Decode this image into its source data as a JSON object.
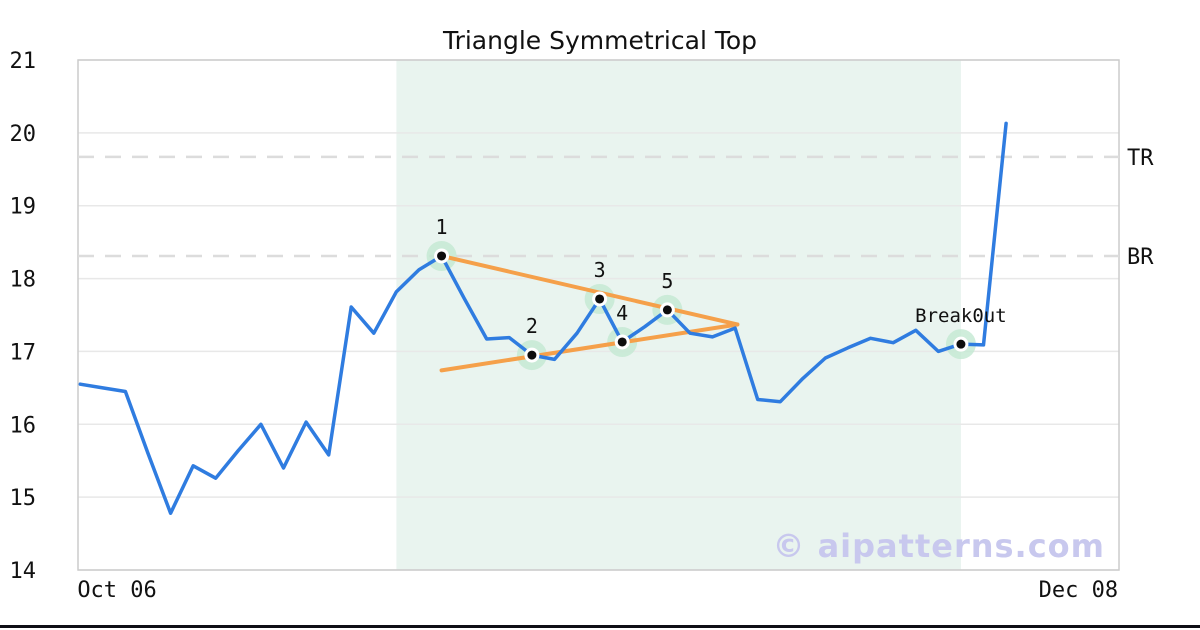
{
  "title": "Triangle Symmetrical Top",
  "watermark": "© aipatterns.com",
  "colors": {
    "price_line": "#2f7ce0",
    "trendline": "#f5a04a",
    "pattern_zone_fill": "#e9f4ef",
    "marker_halo": "#c3e8d2",
    "marker_dot": "#0d0d0d",
    "level_dash": "#dcdcdc",
    "gridline": "#e8e8e8",
    "plot_border": "#cccccc",
    "text": "#111111",
    "watermark_color": "#c8c8ee",
    "bottom_bar": "#0f0f16"
  },
  "chart_data": {
    "type": "line",
    "title": "Triangle Symmetrical Top",
    "xlabel": "",
    "ylabel": "",
    "ylim": [
      14,
      21
    ],
    "xlim": [
      -0.1,
      46
    ],
    "grid": true,
    "legend": false,
    "y_ticks": [
      21,
      20,
      19,
      18,
      17,
      16,
      15,
      14
    ],
    "x_ticks": [
      {
        "label": "Oct 06",
        "x": 1.63
      },
      {
        "label": "Dec 08",
        "x": 44.2
      }
    ],
    "series": [
      {
        "name": "price",
        "x_start": 0,
        "x_step": 1,
        "values": [
          16.55,
          16.5,
          16.45,
          15.6,
          14.78,
          15.43,
          15.26,
          15.64,
          16.0,
          15.4,
          16.03,
          15.58,
          17.61,
          17.25,
          17.82,
          18.12,
          18.31,
          17.73,
          17.17,
          17.19,
          16.95,
          16.89,
          17.25,
          17.72,
          17.13,
          17.34,
          17.57,
          17.25,
          17.2,
          17.32,
          16.34,
          16.31,
          16.63,
          16.91,
          17.05,
          17.18,
          17.12,
          17.29,
          17.0,
          17.1,
          17.09,
          20.13
        ]
      }
    ],
    "levels": [
      {
        "label": "TR",
        "value": 19.67
      },
      {
        "label": "BR",
        "value": 18.31
      }
    ],
    "trendlines": [
      {
        "name": "upper",
        "x1": 16,
        "v1": 18.31,
        "x2": 29.1,
        "v2": 17.37
      },
      {
        "name": "lower",
        "x1": 16,
        "v1": 16.74,
        "x2": 29.1,
        "v2": 17.37
      }
    ],
    "pattern_points": [
      {
        "label": "1",
        "x": 16,
        "value": 18.31
      },
      {
        "label": "2",
        "x": 20,
        "value": 16.95
      },
      {
        "label": "3",
        "x": 23,
        "value": 17.72
      },
      {
        "label": "4",
        "x": 24,
        "value": 17.13
      },
      {
        "label": "5",
        "x": 26,
        "value": 17.57
      }
    ],
    "breakout": {
      "label": "Break0ut",
      "x": 39,
      "value": 17.1
    },
    "shaded_region": {
      "x1": 14,
      "x2": 39
    }
  }
}
